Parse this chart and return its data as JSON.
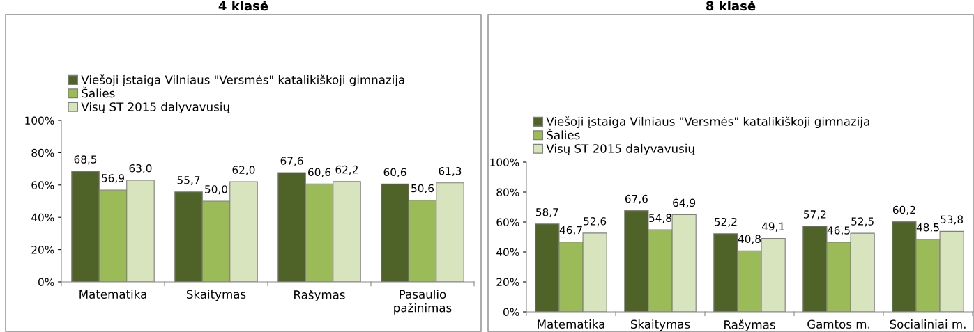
{
  "chart_data": [
    {
      "type": "bar",
      "title": "4 klasė",
      "categories": [
        "Matematika",
        "Skaitymas",
        "Rašymas",
        "Pasaulio pažinimas"
      ],
      "ylim": [
        0,
        100
      ],
      "yticks": [
        {
          "value": 0,
          "label": "0%"
        },
        {
          "value": 20,
          "label": "20%"
        },
        {
          "value": 40,
          "label": "40%"
        },
        {
          "value": 60,
          "label": "60%"
        },
        {
          "value": 80,
          "label": "80%"
        },
        {
          "value": 100,
          "label": "100%"
        }
      ],
      "legend": "top",
      "grid": false,
      "series": [
        {
          "name": "Viešoji įstaiga Vilniaus \"Versmės\" katalikiškoji gimnazija",
          "color": "#4f6228",
          "values": [
            68.5,
            55.7,
            67.6,
            60.6
          ],
          "value_labels": [
            "68,5",
            "55,7",
            "67,6",
            "60,6"
          ]
        },
        {
          "name": "Šalies",
          "color": "#9bbb59",
          "values": [
            56.9,
            50.0,
            60.6,
            50.6
          ],
          "value_labels": [
            "56,9",
            "50,0",
            "60,6",
            "50,6"
          ]
        },
        {
          "name": "Visų ST 2015 dalyvavusių",
          "color": "#d7e4bd",
          "values": [
            63.0,
            62.0,
            62.2,
            61.3
          ],
          "value_labels": [
            "63,0",
            "62,0",
            "62,2",
            "61,3"
          ]
        }
      ]
    },
    {
      "type": "bar",
      "title": "8 klasė",
      "categories": [
        "Matematika",
        "Skaitymas",
        "Rašymas",
        "Gamtos m.",
        "Socialiniai m."
      ],
      "ylim": [
        0,
        100
      ],
      "yticks": [
        {
          "value": 0,
          "label": "0%"
        },
        {
          "value": 20,
          "label": "20%"
        },
        {
          "value": 40,
          "label": "40%"
        },
        {
          "value": 60,
          "label": "60%"
        },
        {
          "value": 80,
          "label": "80%"
        },
        {
          "value": 100,
          "label": "100%"
        }
      ],
      "legend": "top",
      "grid": false,
      "series": [
        {
          "name": "Viešoji įstaiga Vilniaus \"Versmės\" katalikiškoji gimnazija",
          "color": "#4f6228",
          "values": [
            58.7,
            67.6,
            52.2,
            57.2,
            60.2
          ],
          "value_labels": [
            "58,7",
            "67,6",
            "52,2",
            "57,2",
            "60,2"
          ]
        },
        {
          "name": "Šalies",
          "color": "#9bbb59",
          "values": [
            46.7,
            54.8,
            40.8,
            46.5,
            48.5
          ],
          "value_labels": [
            "46,7",
            "54,8",
            "40,8",
            "46,5",
            "48,5"
          ]
        },
        {
          "name": "Visų ST 2015 dalyvavusių",
          "color": "#d7e4bd",
          "values": [
            52.6,
            64.9,
            49.1,
            52.5,
            53.8
          ],
          "value_labels": [
            "52,6",
            "64,9",
            "49,1",
            "52,5",
            "53,8"
          ]
        }
      ]
    }
  ]
}
